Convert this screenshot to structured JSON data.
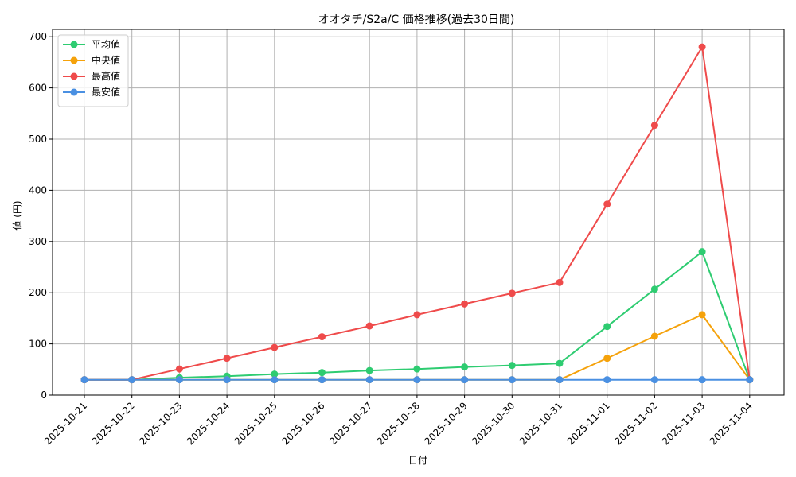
{
  "chart_data": {
    "type": "line",
    "title": "オオタチ/S2a/C 価格推移(過去30日間)",
    "xlabel": "日付",
    "ylabel": "値 (円)",
    "ylim": [
      0,
      700
    ],
    "yticks": [
      0,
      100,
      200,
      300,
      400,
      500,
      600,
      700
    ],
    "grid": true,
    "legend_position": "top-left",
    "categories": [
      "2025-10-21",
      "2025-10-22",
      "2025-10-23",
      "2025-10-24",
      "2025-10-25",
      "2025-10-26",
      "2025-10-27",
      "2025-10-28",
      "2025-10-29",
      "2025-10-30",
      "2025-10-31",
      "2025-11-01",
      "2025-11-02",
      "2025-11-03",
      "2025-11-04"
    ],
    "series": [
      {
        "name": "平均値",
        "color": "#2ecc71",
        "values": [
          30,
          30,
          34,
          37,
          41,
          44,
          48,
          51,
          55,
          58,
          62,
          134,
          207,
          280,
          30
        ]
      },
      {
        "name": "中央値",
        "color": "#f5a20b",
        "values": [
          30,
          30,
          30,
          30,
          30,
          30,
          30,
          30,
          30,
          30,
          30,
          72,
          115,
          157,
          30
        ]
      },
      {
        "name": "最高値",
        "color": "#ef4b4b",
        "values": [
          30,
          30,
          51,
          72,
          93,
          114,
          135,
          157,
          178,
          199,
          220,
          373,
          527,
          680,
          30
        ]
      },
      {
        "name": "最安値",
        "color": "#4a90e2",
        "values": [
          30,
          30,
          30,
          30,
          30,
          30,
          30,
          30,
          30,
          30,
          30,
          30,
          30,
          30,
          30
        ]
      }
    ]
  }
}
